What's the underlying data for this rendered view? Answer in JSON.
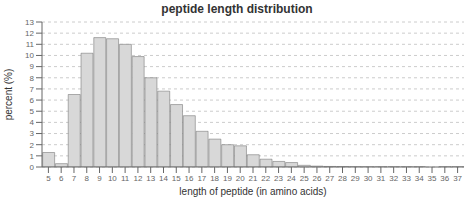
{
  "chart_data": {
    "type": "bar",
    "title": "peptide length distribution",
    "xlabel": "length of peptide (in amino acids)",
    "ylabel": "percent (%)",
    "categories": [
      5,
      6,
      7,
      8,
      9,
      10,
      11,
      12,
      13,
      14,
      15,
      16,
      17,
      18,
      19,
      20,
      21,
      22,
      23,
      24,
      25,
      26,
      27,
      28,
      29,
      30,
      31,
      32,
      33,
      34,
      35,
      36,
      37
    ],
    "values": [
      1.3,
      0.3,
      6.5,
      10.2,
      11.6,
      11.5,
      11.0,
      9.9,
      8.0,
      6.8,
      5.6,
      4.6,
      3.2,
      2.5,
      2.0,
      1.9,
      1.1,
      0.7,
      0.5,
      0.4,
      0.15,
      0.08,
      0.05,
      0.04,
      0.02,
      0.01,
      0.01,
      0.01,
      0.01,
      0.01,
      0.0,
      0.01,
      0.01
    ],
    "color": "#d8d8d8",
    "ylim": [
      0,
      13
    ],
    "yticks": [
      0,
      1,
      2,
      3,
      4,
      5,
      6,
      7,
      8,
      9,
      10,
      11,
      12,
      13
    ],
    "grid": true
  }
}
